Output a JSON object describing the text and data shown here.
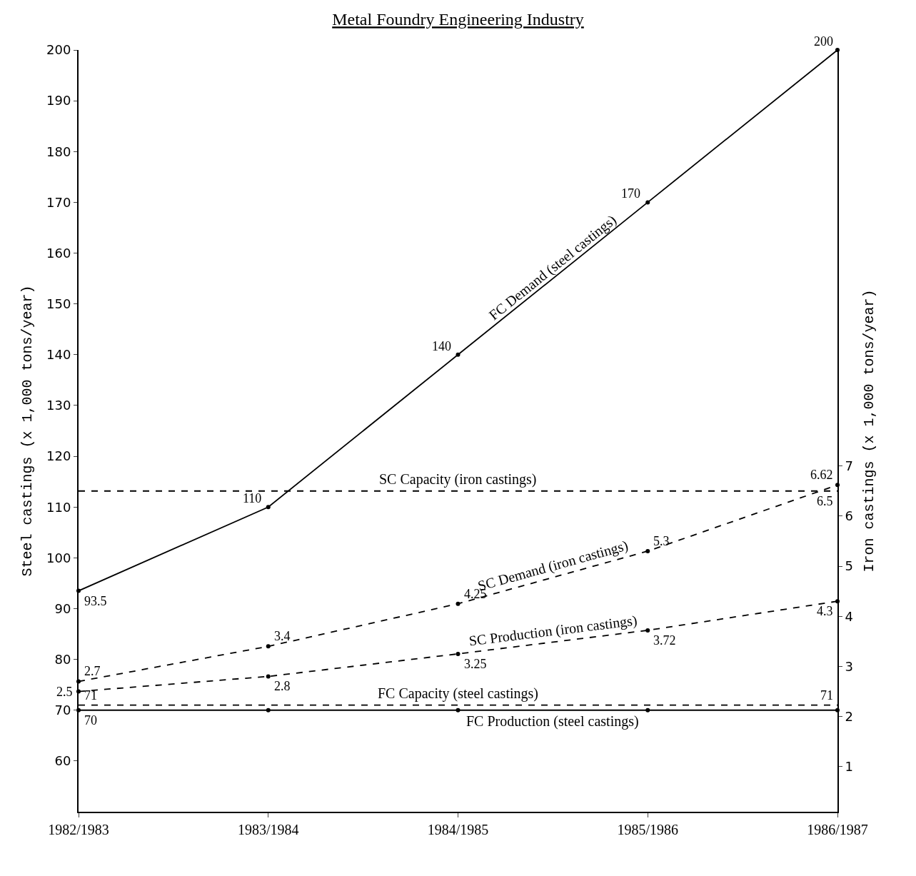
{
  "chart_data": {
    "type": "line",
    "title": "Metal Foundry Engineering Industry",
    "ylabel": "Steel castings (x 1,000 tons/year)",
    "y2label": "Iron castings (x 1,000 tons/year)",
    "categories": [
      "1982/1983",
      "1983/1984",
      "1984/1985",
      "1985/1986",
      "1986/1987"
    ],
    "ylim": [
      50,
      200
    ],
    "yticks": [
      60,
      70,
      80,
      90,
      100,
      110,
      120,
      130,
      140,
      150,
      160,
      170,
      180,
      190,
      200
    ],
    "y2lim": [
      0.1,
      15.3
    ],
    "y2ticks": [
      1,
      2,
      3,
      4,
      5,
      6,
      7
    ],
    "legend": false,
    "marker": "circle",
    "series": [
      {
        "name": "FC Demand (steel castings)",
        "color": "#000000",
        "line_style": "solid",
        "values": [
          93.5,
          110,
          140,
          170,
          200
        ],
        "value_labels": [
          "93.5",
          "110",
          "140",
          "170",
          "200"
        ]
      },
      {
        "name": "SC Capacity (iron castings)",
        "color": "#000000",
        "line_style": "dashed",
        "marker": "none",
        "axis": "y2",
        "values": [
          6.5,
          null,
          null,
          null,
          6.5
        ],
        "value_labels": [
          null,
          null,
          null,
          null,
          "6.5"
        ]
      },
      {
        "name": "SC Demand (iron castings)",
        "color": "#000000",
        "line_style": "dashed",
        "axis": "y2",
        "values": [
          2.7,
          3.4,
          4.25,
          5.3,
          6.62
        ],
        "value_labels": [
          "2.7",
          "3.4",
          "4.25",
          "5.3",
          "6.62"
        ]
      },
      {
        "name": "SC Production (iron castings)",
        "color": "#000000",
        "line_style": "dashed",
        "axis": "y2",
        "values": [
          2.5,
          2.8,
          3.25,
          3.72,
          4.3
        ],
        "value_labels": [
          "2.5",
          "2.8",
          "3.25",
          "3.72",
          "4.3"
        ]
      },
      {
        "name": "FC Capacity (steel castings)",
        "color": "#000000",
        "line_style": "dashed",
        "marker": "none",
        "values": [
          71,
          null,
          null,
          null,
          71
        ],
        "value_labels": [
          "71",
          null,
          null,
          null,
          "71"
        ]
      },
      {
        "name": "FC Production (steel castings)",
        "color": "#000000",
        "line_style": "solid",
        "values": [
          70,
          70,
          70,
          70,
          70
        ],
        "value_labels": [
          "70",
          null,
          null,
          null,
          null
        ]
      }
    ]
  }
}
